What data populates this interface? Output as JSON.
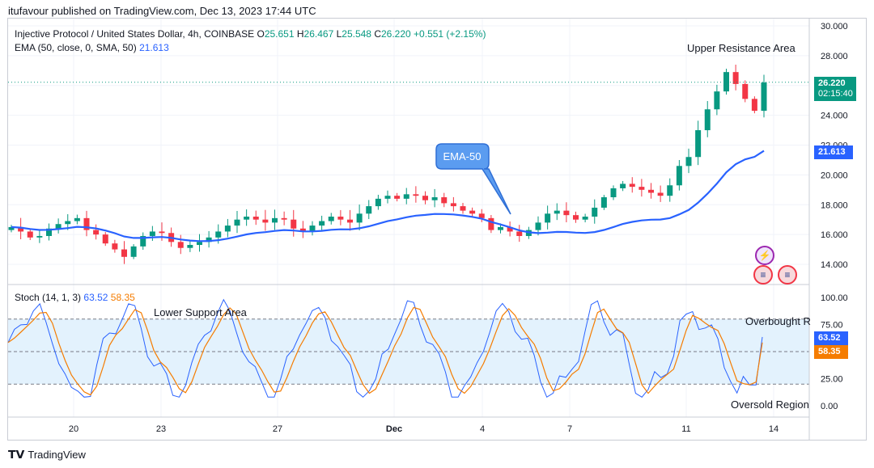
{
  "header": {
    "published": "itufavour published on TradingView.com, Dec 13, 2023 17:44 UTC"
  },
  "main_legend": {
    "symbol": "Injective Protocol / United States Dollar, 4h, COINBASE",
    "o_label": "O",
    "o": "25.651",
    "h_label": "H",
    "h": "26.467",
    "l_label": "L",
    "l": "25.548",
    "c_label": "C",
    "c": "26.220",
    "change": "+0.551 (+2.15%)"
  },
  "ema_legend": {
    "label": "EMA (50, close, 0, SMA, 50)",
    "value": "21.613"
  },
  "stoch_legend": {
    "label": "Stoch (14, 1, 3)",
    "k": "63.52",
    "d": "58.35"
  },
  "price_tags": {
    "last": "26.220",
    "countdown": "02:15:40",
    "ema": "21.613",
    "stoch_k": "63.52",
    "stoch_d": "58.35"
  },
  "annotations": {
    "upper": "Upper Resistance Area",
    "ema_callout": "EMA-50",
    "lower": "Lower Support Area",
    "overbought": "Overbought R",
    "oversold": "Oversold Region"
  },
  "colors": {
    "up": "#089981",
    "down": "#f23645",
    "ema": "#2962ff",
    "k": "#2962ff",
    "d": "#f57c00",
    "band": "#e3f2fd"
  },
  "icons": {
    "lightning": "lightning-icon",
    "flag1": "us-flag-icon",
    "flag2": "us-flag-icon"
  },
  "footer": {
    "brand": "TradingView"
  },
  "chart_data": [
    {
      "type": "candlestick",
      "title": "Injective Protocol / United States Dollar, 4h, COINBASE",
      "ylim": [
        13,
        30.5
      ],
      "y_ticks": [
        "30.000",
        "28.000",
        "26.000",
        "24.000",
        "22.000",
        "20.000",
        "18.000",
        "16.000",
        "14.000"
      ],
      "x_ticks": [
        "20",
        "23",
        "27",
        "Dec",
        "4",
        "7",
        "11",
        "14"
      ],
      "ohlc_close_approx": [
        16.5,
        16.2,
        15.8,
        15.9,
        16.4,
        16.7,
        16.9,
        17.1,
        16.3,
        16.0,
        15.4,
        15.0,
        14.5,
        15.2,
        15.9,
        16.2,
        16.1,
        15.5,
        15.1,
        15.3,
        15.5,
        15.8,
        16.2,
        16.6,
        17.0,
        17.2,
        17.0,
        16.8,
        17.1,
        17.0,
        16.4,
        16.2,
        16.6,
        16.9,
        17.2,
        17.0,
        16.8,
        17.4,
        17.9,
        18.4,
        18.6,
        18.4,
        18.7,
        18.6,
        18.3,
        18.5,
        18.1,
        17.9,
        17.6,
        17.4,
        17.1,
        16.3,
        16.5,
        16.2,
        15.9,
        16.3,
        16.8,
        17.4,
        17.6,
        17.3,
        17.0,
        17.2,
        17.8,
        18.5,
        19.1,
        19.4,
        19.2,
        19.0,
        18.8,
        18.6,
        19.3,
        20.6,
        21.2,
        23.0,
        24.4,
        25.6,
        26.9,
        26.1,
        25.1,
        24.3,
        26.2
      ],
      "ema50": {
        "name": "EMA (50, close, 0, SMA, 50)",
        "last": 21.613
      },
      "last_price": 26.22
    },
    {
      "type": "line",
      "title": "Stoch (14, 1, 3)",
      "ylim": [
        0,
        100
      ],
      "y_ticks": [
        "100.00",
        "75.00",
        "25.00",
        "0.00"
      ],
      "overbought": 80,
      "oversold": 20,
      "middle": 50,
      "series": [
        {
          "name": "%K",
          "last": 63.52
        },
        {
          "name": "%D",
          "last": 58.35
        }
      ]
    }
  ]
}
